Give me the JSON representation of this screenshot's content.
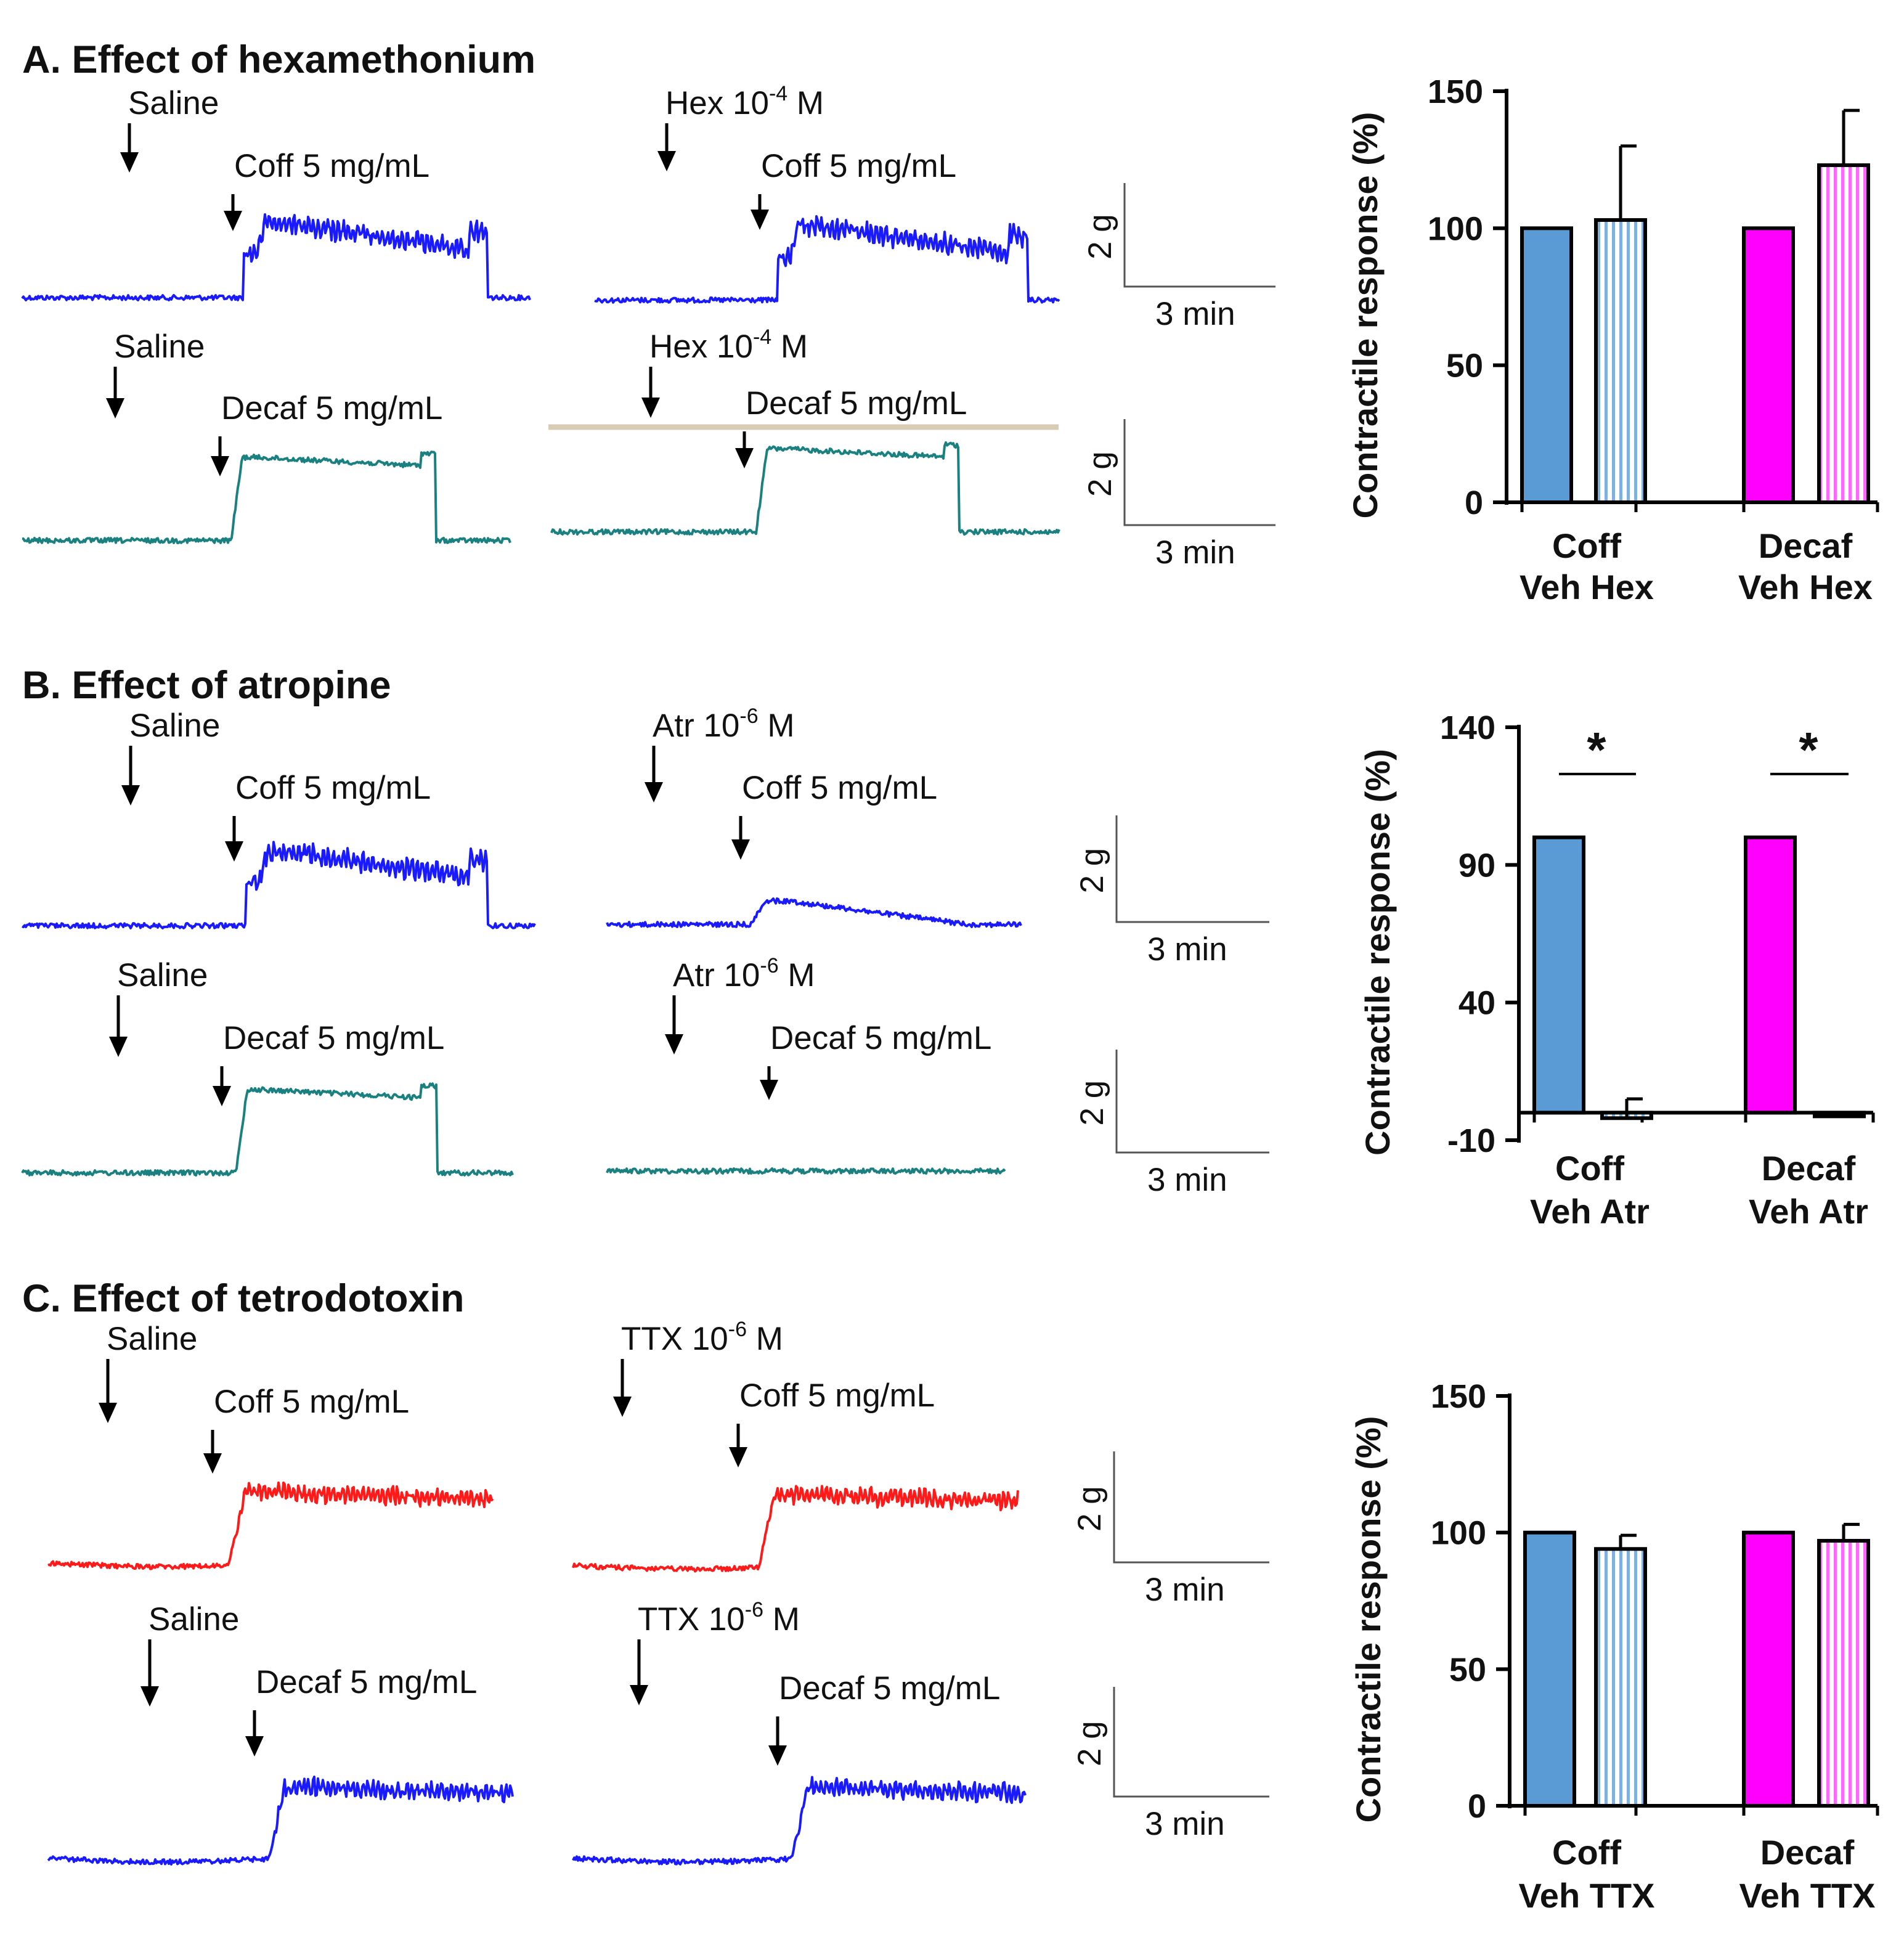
{
  "sections": [
    {
      "title": "A. Effect of hexamethonium",
      "traces": [
        {
          "label1": "Saline",
          "label2": "Coff 5 mg/mL",
          "color": "#1a1aff",
          "shape": "hump"
        },
        {
          "label1": "Hex 10",
          "label1_exp": "-4",
          "label1_unit": " M",
          "label2": "Coff 5 mg/mL",
          "color": "#1a1aff",
          "shape": "hump"
        },
        {
          "label1": "Saline",
          "label2": "Decaf 5 mg/mL",
          "color": "#1a8080",
          "shape": "plateau"
        },
        {
          "label1": "Hex 10",
          "label1_exp": "-4",
          "label1_unit": " M",
          "label2": "Decaf 5 mg/mL",
          "color": "#1a8080",
          "shape": "plateau"
        }
      ],
      "scalebars": [
        {
          "v": "2 g",
          "h": "3 min"
        },
        {
          "v": "2 g",
          "h": "3 min"
        }
      ],
      "chart": {
        "ylabel": "Contractile response (%)",
        "yticks": [
          "150",
          "100",
          "50",
          "0"
        ],
        "groups": [
          {
            "name": "Coff",
            "sub": "Veh Hex"
          },
          {
            "name": "Decaf",
            "sub": "Veh Hex"
          }
        ]
      }
    },
    {
      "title": "B. Effect of atropine",
      "traces": [
        {
          "label1": "Saline",
          "label2": "Coff 5 mg/mL",
          "color": "#1a1aff",
          "shape": "hump"
        },
        {
          "label1": "Atr 10",
          "label1_exp": "-6",
          "label1_unit": " M",
          "label2": "Coff 5 mg/mL",
          "color": "#1a1aff",
          "shape": "small"
        },
        {
          "label1": "Saline",
          "label2": "Decaf 5 mg/mL",
          "color": "#1a8080",
          "shape": "plateau"
        },
        {
          "label1": "Atr 10",
          "label1_exp": "-6",
          "label1_unit": " M",
          "label2": "Decaf 5 mg/mL",
          "color": "#1a8080",
          "shape": "flat"
        }
      ],
      "scalebars": [
        {
          "v": "2 g",
          "h": "3 min"
        },
        {
          "v": "2 g",
          "h": "3 min"
        }
      ],
      "chart": {
        "ylabel": "Contractile response (%)",
        "yticks": [
          "140",
          "90",
          "40",
          "-10"
        ],
        "groups": [
          {
            "name": "Coff",
            "sub": "Veh Atr"
          },
          {
            "name": "Decaf",
            "sub": "Veh Atr"
          }
        ],
        "sig": "*"
      }
    },
    {
      "title": "C. Effect of tetrodotoxin",
      "traces": [
        {
          "label1": "Saline",
          "label2": "Coff 5 mg/mL",
          "color": "#ff1a1a",
          "shape": "step"
        },
        {
          "label1": "TTX 10",
          "label1_exp": "-6",
          "label1_unit": " M",
          "label2": "Coff 5 mg/mL",
          "color": "#ff1a1a",
          "shape": "step"
        },
        {
          "label1": "Saline",
          "label2": "Decaf 5 mg/mL",
          "color": "#1a1aff",
          "shape": "step"
        },
        {
          "label1": "TTX 10",
          "label1_exp": "-6",
          "label1_unit": " M",
          "label2": "Decaf 5 mg/mL",
          "color": "#1a1aff",
          "shape": "step"
        }
      ],
      "scalebars": [
        {
          "v": "2 g",
          "h": "3 min"
        },
        {
          "v": "2 g",
          "h": "3 min"
        }
      ],
      "chart": {
        "ylabel": "Contractile response (%)",
        "yticks": [
          "150",
          "100",
          "50",
          "0"
        ],
        "groups": [
          {
            "name": "Coff",
            "sub": "Veh TTX"
          },
          {
            "name": "Decaf",
            "sub": "Veh TTX"
          }
        ]
      }
    }
  ],
  "chart_data": [
    {
      "type": "bar",
      "ylabel": "Contractile response (%)",
      "ylim": [
        0,
        150
      ],
      "yticks": [
        0,
        50,
        100,
        150
      ],
      "categories": [
        "Coff Veh",
        "Coff Hex",
        "Decaf Veh",
        "Decaf Hex"
      ],
      "values": [
        100,
        103,
        100,
        123
      ],
      "errors": [
        0,
        27,
        0,
        20
      ],
      "colors": [
        "#5b9bd5",
        "#9dc3e6",
        "#ff00ff",
        "#ff99ff"
      ],
      "patterns": [
        "solid",
        "striped",
        "solid",
        "striped"
      ]
    },
    {
      "type": "bar",
      "ylabel": "Contractile response (%)",
      "ylim": [
        -10,
        140
      ],
      "yticks": [
        -10,
        40,
        90,
        140
      ],
      "categories": [
        "Coff Veh",
        "Coff Atr",
        "Decaf Veh",
        "Decaf Atr"
      ],
      "values": [
        100,
        -2,
        100,
        -1
      ],
      "errors": [
        0,
        7,
        0,
        0
      ],
      "colors": [
        "#5b9bd5",
        "#9dc3e6",
        "#ff00ff",
        "#ff99ff"
      ],
      "patterns": [
        "solid",
        "striped",
        "solid",
        "striped"
      ],
      "significance": [
        {
          "between": [
            "Coff Veh",
            "Coff Atr"
          ],
          "label": "*"
        },
        {
          "between": [
            "Decaf Veh",
            "Decaf Atr"
          ],
          "label": "*"
        }
      ]
    },
    {
      "type": "bar",
      "ylabel": "Contractile response (%)",
      "ylim": [
        0,
        150
      ],
      "yticks": [
        0,
        50,
        100,
        150
      ],
      "categories": [
        "Coff Veh",
        "Coff TTX",
        "Decaf Veh",
        "Decaf TTX"
      ],
      "values": [
        100,
        94,
        100,
        97
      ],
      "errors": [
        0,
        5,
        0,
        6
      ],
      "colors": [
        "#5b9bd5",
        "#9dc3e6",
        "#ff00ff",
        "#ff99ff"
      ],
      "patterns": [
        "solid",
        "striped",
        "solid",
        "striped"
      ]
    }
  ]
}
